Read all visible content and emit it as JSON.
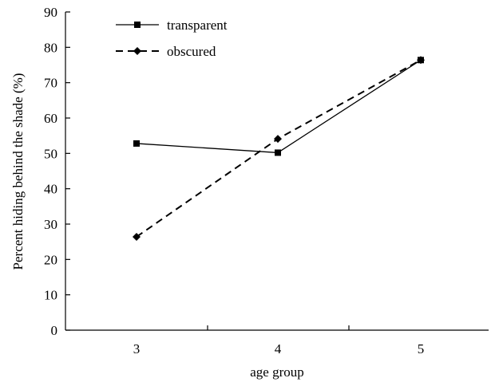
{
  "chart_data": {
    "type": "line",
    "title": "",
    "xlabel": "age group",
    "ylabel": "Percent hiding behind the shade (%)",
    "categories": [
      "3",
      "4",
      "5"
    ],
    "ylim": [
      0,
      90
    ],
    "yticks": [
      0,
      10,
      20,
      30,
      40,
      50,
      60,
      70,
      80,
      90
    ],
    "grid": false,
    "legend_position": "top-left",
    "series": [
      {
        "name": "transparent",
        "values": [
          52.8,
          50.2,
          76.4
        ],
        "line_style": "solid",
        "marker": "square",
        "color": "#000000"
      },
      {
        "name": "obscured",
        "values": [
          26.4,
          54.1,
          76.4
        ],
        "line_style": "dashed",
        "marker": "diamond",
        "color": "#000000"
      }
    ]
  }
}
